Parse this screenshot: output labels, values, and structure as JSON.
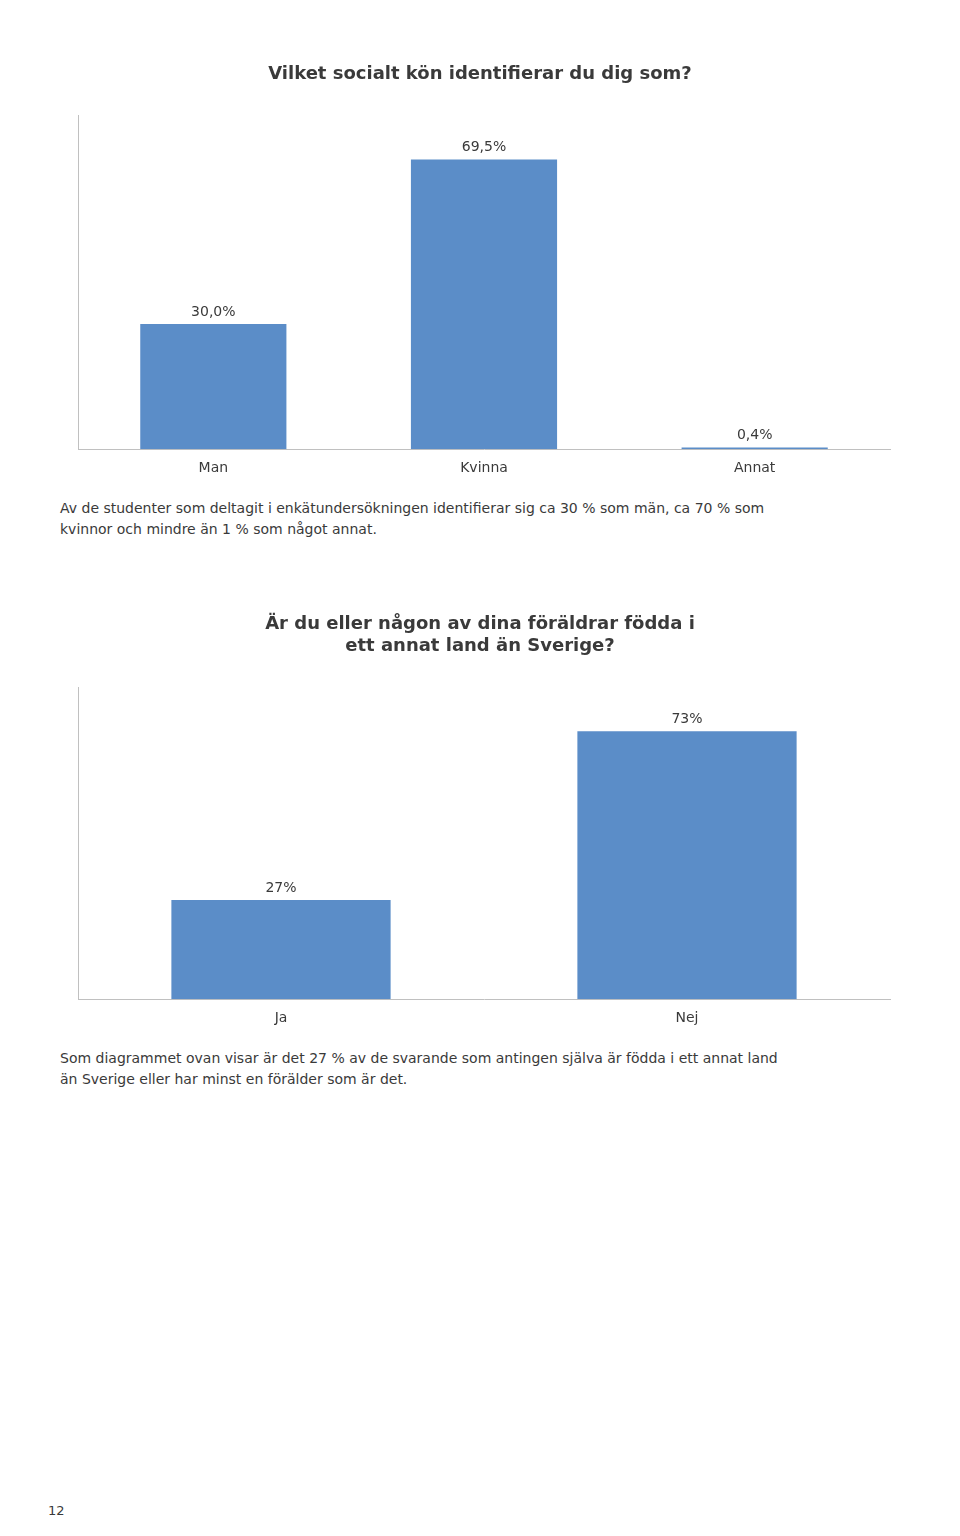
{
  "chart_data": [
    {
      "type": "bar",
      "title": "Vilket socialt kön identifierar du dig som?",
      "categories": [
        "Man",
        "Kvinna",
        "Annat"
      ],
      "values": [
        30.0,
        69.5,
        0.4
      ],
      "value_labels": [
        "30,0%",
        "69,5%",
        "0,4%"
      ],
      "color": "#5b8dc8",
      "ylim": [
        0,
        80
      ],
      "yticks": [],
      "grid": false,
      "tick_labels": "x",
      "data_labels": true,
      "annotations": [
        "Av de studenter som deltagit i enkätundersökningen identifierar sig ca 30 % som män, ca 70 % som\nkvinnor och mindre än 1 % som något annat."
      ]
    },
    {
      "type": "bar",
      "title": "Är du eller någon av dina föräldrar födda i\nett annat land än Sverige?",
      "categories": [
        "Ja",
        "Nej"
      ],
      "values": [
        27,
        73
      ],
      "value_labels": [
        "27%",
        "73%"
      ],
      "color": "#5b8dc8",
      "ylim": [
        0,
        85
      ],
      "yticks": [],
      "grid": false,
      "tick_labels": "x",
      "data_labels": true,
      "annotations": [
        "Som diagrammet ovan visar är det 27 % av de svarande som antingen själva är födda i ett annat land\nän Sverige eller har minst en förälder som är det."
      ]
    }
  ],
  "page_number": "12"
}
